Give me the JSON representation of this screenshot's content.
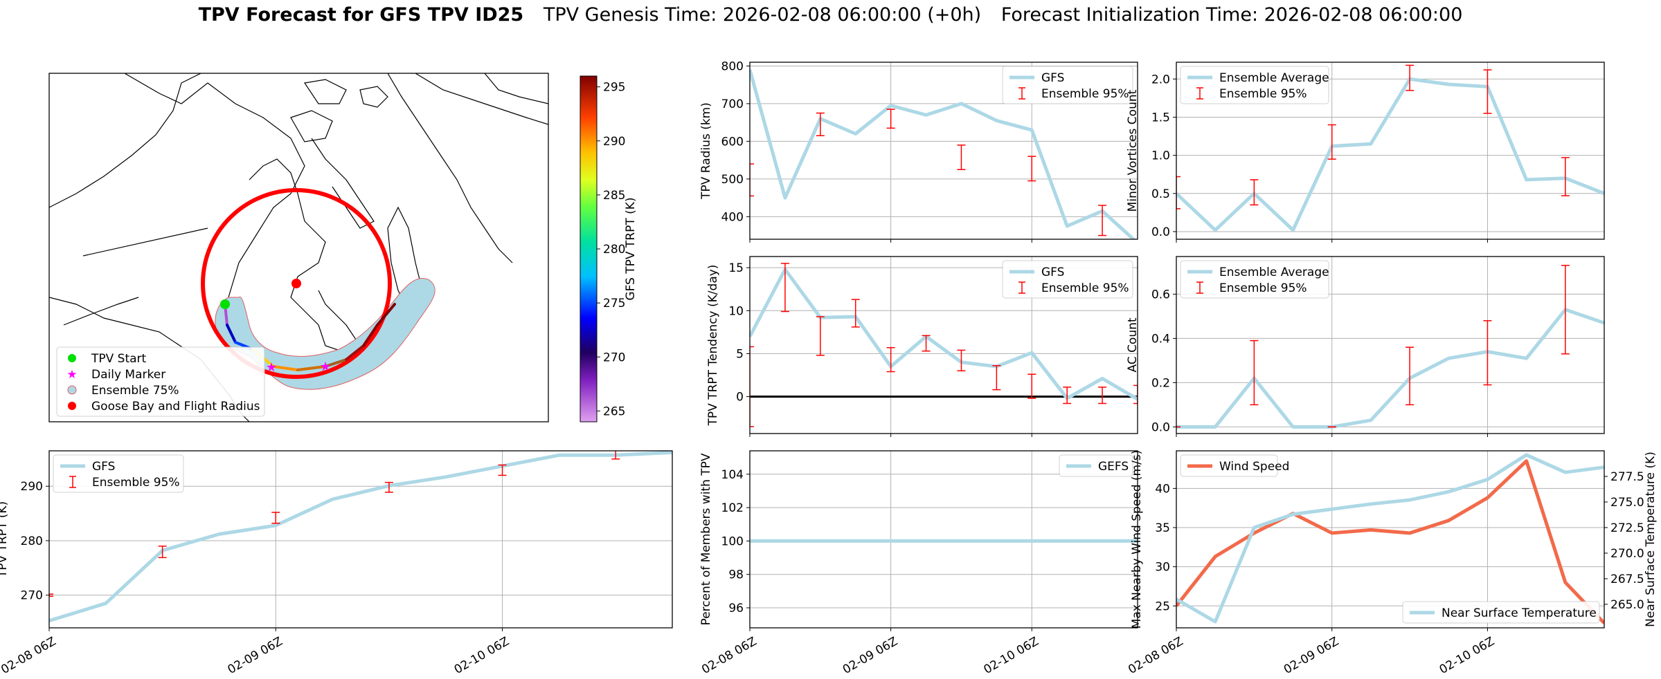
{
  "title": {
    "bold": "TPV Forecast for GFS TPV ID25",
    "genesis": "TPV Genesis Time: 2026-02-08 06:00:00 (+0h)",
    "init": "Forecast Initialization Time: 2026-02-08 06:00:00"
  },
  "time_ticks": [
    "02-08 06Z",
    "02-09 06Z",
    "02-10 06Z"
  ],
  "colors": {
    "gfs_line": "#add8e6",
    "ensemble_err": "#ff0000",
    "wind": "#f26a4a",
    "temp_axis": "#4169e1",
    "flight_radius": "#ff0000"
  },
  "chart_data": [
    {
      "id": "map",
      "type": "map",
      "colorbar": {
        "label": "GFS TPV TRPT (K)",
        "ticks": [
          265,
          270,
          275,
          280,
          285,
          290,
          295
        ],
        "range": [
          264,
          296
        ]
      },
      "legend": [
        "TPV Start",
        "Daily Marker",
        "Ensemble 75%",
        "Goose Bay and Flight Radius"
      ],
      "legend_icons": [
        "green-circle-icon",
        "magenta-star-icon",
        "lightblue-swatch-icon",
        "red-circle-icon"
      ]
    },
    {
      "id": "radius",
      "type": "line",
      "ylabel": "TPV Radius (km)",
      "ylim": [
        340,
        810
      ],
      "yticks": [
        400,
        500,
        600,
        700,
        800
      ],
      "xlim": [
        0,
        22
      ],
      "legend": [
        "GFS",
        "Ensemble 95%"
      ],
      "series": [
        {
          "name": "GFS",
          "x": [
            0,
            2,
            4,
            6,
            8,
            10,
            12,
            14,
            16,
            18,
            20,
            22
          ],
          "values": [
            790,
            450,
            660,
            620,
            695,
            670,
            700,
            655,
            630,
            375,
            415,
            330
          ]
        }
      ],
      "errorbars": [
        {
          "x": 0,
          "lo": 455,
          "hi": 540
        },
        {
          "x": 4,
          "lo": 615,
          "hi": 675
        },
        {
          "x": 8,
          "lo": 635,
          "hi": 685
        },
        {
          "x": 12,
          "lo": 525,
          "hi": 590
        },
        {
          "x": 16,
          "lo": 495,
          "hi": 560
        },
        {
          "x": 20,
          "lo": 350,
          "hi": 430
        }
      ]
    },
    {
      "id": "minor",
      "type": "line",
      "ylabel": "Minor Vortices Count",
      "ylim": [
        -0.1,
        2.22
      ],
      "yticks": [
        "0.0",
        "0.5",
        "1.0",
        "1.5",
        "2.0"
      ],
      "xlim": [
        0,
        22
      ],
      "legend": [
        "Ensemble Average",
        "Ensemble 95%"
      ],
      "series": [
        {
          "name": "Ensemble Average",
          "x": [
            0,
            2,
            4,
            6,
            8,
            10,
            12,
            14,
            16,
            18,
            20,
            22
          ],
          "values": [
            0.5,
            0.02,
            0.5,
            0.02,
            1.12,
            1.15,
            2.0,
            1.93,
            1.9,
            0.68,
            0.7,
            0.5
          ]
        }
      ],
      "errorbars": [
        {
          "x": 0,
          "lo": 0.3,
          "hi": 0.72
        },
        {
          "x": 4,
          "lo": 0.35,
          "hi": 0.68
        },
        {
          "x": 8,
          "lo": 0.95,
          "hi": 1.4
        },
        {
          "x": 12,
          "lo": 1.85,
          "hi": 2.18
        },
        {
          "x": 16,
          "lo": 1.55,
          "hi": 2.12
        },
        {
          "x": 20,
          "lo": 0.47,
          "hi": 0.97
        }
      ]
    },
    {
      "id": "tendency",
      "type": "line",
      "ylabel": "TPV TRPT Tendency (K/day)",
      "ylim": [
        -4.3,
        16.3
      ],
      "yticks": [
        0,
        5,
        10,
        15
      ],
      "xlim": [
        0,
        22
      ],
      "zero_line": true,
      "legend": [
        "GFS",
        "Ensemble 95%"
      ],
      "series": [
        {
          "name": "GFS",
          "x": [
            0,
            2,
            4,
            6,
            8,
            10,
            12,
            14,
            16,
            18,
            20,
            22
          ],
          "values": [
            7.0,
            14.8,
            9.2,
            9.3,
            3.5,
            7.0,
            4.0,
            3.5,
            5.1,
            -0.2,
            2.1,
            -0.3
          ]
        }
      ],
      "errorbars": [
        {
          "x": 0,
          "lo": -3.5,
          "hi": 5.8
        },
        {
          "x": 2,
          "lo": 9.9,
          "hi": 15.5
        },
        {
          "x": 4,
          "lo": 4.8,
          "hi": 9.3
        },
        {
          "x": 6,
          "lo": 8.1,
          "hi": 11.3
        },
        {
          "x": 8,
          "lo": 2.9,
          "hi": 5.7
        },
        {
          "x": 10,
          "lo": 5.3,
          "hi": 7.1
        },
        {
          "x": 12,
          "lo": 3.0,
          "hi": 5.4
        },
        {
          "x": 14,
          "lo": 0.8,
          "hi": 3.6
        },
        {
          "x": 16,
          "lo": -0.2,
          "hi": 2.6
        },
        {
          "x": 18,
          "lo": -0.8,
          "hi": 1.1
        },
        {
          "x": 20,
          "lo": -0.8,
          "hi": 1.1
        },
        {
          "x": 22,
          "lo": -0.8,
          "hi": 1.3
        }
      ]
    },
    {
      "id": "ac",
      "type": "line",
      "ylabel": "AC Count",
      "ylim": [
        -0.03,
        0.77
      ],
      "yticks": [
        "0.0",
        "0.2",
        "0.4",
        "0.6"
      ],
      "xlim": [
        0,
        22
      ],
      "legend": [
        "Ensemble Average",
        "Ensemble 95%"
      ],
      "series": [
        {
          "name": "Ensemble Average",
          "x": [
            0,
            2,
            4,
            6,
            8,
            10,
            12,
            14,
            16,
            18,
            20,
            22
          ],
          "values": [
            0,
            0,
            0.22,
            0,
            0,
            0.03,
            0.22,
            0.31,
            0.34,
            0.31,
            0.53,
            0.47
          ]
        }
      ],
      "errorbars": [
        {
          "x": 0,
          "lo": 0,
          "hi": 0
        },
        {
          "x": 4,
          "lo": 0.1,
          "hi": 0.39
        },
        {
          "x": 8,
          "lo": 0,
          "hi": 0
        },
        {
          "x": 12,
          "lo": 0.1,
          "hi": 0.36
        },
        {
          "x": 16,
          "lo": 0.19,
          "hi": 0.48
        },
        {
          "x": 20,
          "lo": 0.33,
          "hi": 0.73
        }
      ]
    },
    {
      "id": "trpt",
      "type": "line",
      "ylabel": "TPV TRPT (K)",
      "ylim": [
        264,
        296.5
      ],
      "yticks": [
        270,
        280,
        290
      ],
      "xlim": [
        0,
        22
      ],
      "legend": [
        "GFS",
        "Ensemble 95%"
      ],
      "series": [
        {
          "name": "GFS",
          "x": [
            0,
            2,
            4,
            6,
            8,
            10,
            12,
            14,
            16,
            18,
            20,
            22
          ],
          "values": [
            265.3,
            268.5,
            278.2,
            281.2,
            282.8,
            287.6,
            290.1,
            291.7,
            293.7,
            295.7,
            295.7,
            296.2
          ]
        }
      ],
      "errorbars": [
        {
          "x": 0,
          "lo": 269.8,
          "hi": 270.2
        },
        {
          "x": 4,
          "lo": 276.9,
          "hi": 279.0
        },
        {
          "x": 8,
          "lo": 283.2,
          "hi": 285.2
        },
        {
          "x": 12,
          "lo": 288.9,
          "hi": 290.7
        },
        {
          "x": 16,
          "lo": 292.0,
          "hi": 293.9
        },
        {
          "x": 20,
          "lo": 295.0,
          "hi": 297.7
        }
      ]
    },
    {
      "id": "percent",
      "type": "line",
      "ylabel": "Percent of Members with TPV",
      "ylim": [
        94.8,
        105.4
      ],
      "yticks": [
        96,
        98,
        100,
        102,
        104
      ],
      "xlim": [
        0,
        22
      ],
      "legend": [
        "GEFS"
      ],
      "series": [
        {
          "name": "GEFS",
          "x": [
            0,
            22
          ],
          "values": [
            100,
            100
          ]
        }
      ]
    },
    {
      "id": "wind",
      "type": "line",
      "ylabel": "Max Nearby Wind Speed (m/s)",
      "ylabel2": "Near Surface Temperature (K)",
      "ylim": [
        22.2,
        44.8
      ],
      "yticks": [
        25,
        30,
        35,
        40
      ],
      "ylim2": [
        262.7,
        280.0
      ],
      "yticks2": [
        "265.0",
        "267.5",
        "270.0",
        "272.5",
        "275.0",
        "277.5"
      ],
      "xlim": [
        0,
        22
      ],
      "legend": [
        "Wind Speed"
      ],
      "legend2": [
        "Near Surface Temperature"
      ],
      "series": [
        {
          "name": "Wind Speed",
          "x": [
            0,
            2,
            4,
            6,
            8,
            10,
            12,
            14,
            16,
            18,
            20,
            22
          ],
          "values": [
            25.0,
            31.3,
            34.3,
            36.8,
            34.3,
            34.7,
            34.3,
            35.9,
            38.8,
            43.5,
            28.0,
            22.8
          ]
        },
        {
          "name": "Near Surface Temperature",
          "x": [
            0,
            2,
            4,
            6,
            8,
            10,
            12,
            14,
            16,
            18,
            20,
            22
          ],
          "values": [
            265.5,
            263.3,
            272.5,
            273.8,
            274.3,
            274.8,
            275.2,
            276.0,
            277.2,
            279.6,
            277.9,
            278.4
          ]
        }
      ]
    }
  ]
}
